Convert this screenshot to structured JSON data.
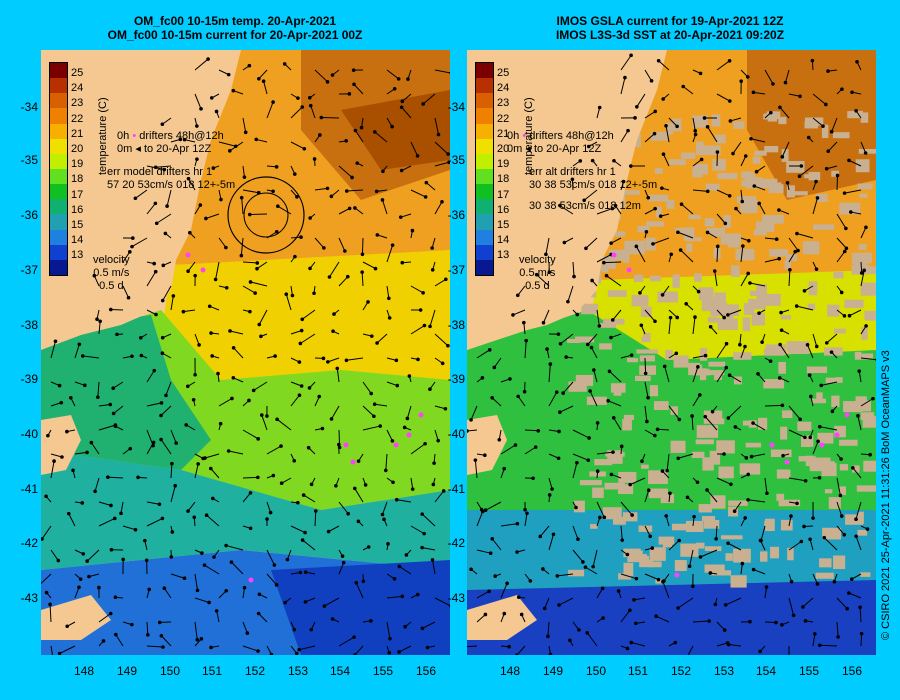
{
  "titles": {
    "left_line1": "OM_fc00 10-15m temp. 20-Apr-2021",
    "left_line2": "OM_fc00 10-15m current for 20-Apr-2021 00Z",
    "right_line1": "IMOS GSLA current for 19-Apr-2021 12Z",
    "right_line2": "IMOS L3S-3d SST at 20-Apr-2021 09:20Z"
  },
  "axes": {
    "lat_ticks": [
      "-34",
      "-35",
      "-36",
      "-37",
      "-38",
      "-39",
      "-40",
      "-41",
      "-42",
      "-43"
    ],
    "lon_ticks": [
      "148",
      "149",
      "150",
      "151",
      "152",
      "153",
      "154",
      "155",
      "156"
    ]
  },
  "colorbar": {
    "ticks": [
      "25",
      "24",
      "23",
      "22",
      "21",
      "20",
      "19",
      "18",
      "17",
      "16",
      "15",
      "14",
      "13"
    ],
    "label": "temperature (C)",
    "colors": [
      "#7a0000",
      "#b83000",
      "#d86000",
      "#f08000",
      "#f8b000",
      "#f0e000",
      "#c0f000",
      "#60e020",
      "#10c020",
      "#10b070",
      "#20a0b0",
      "#2080e0",
      "#1040d0",
      "#081890"
    ]
  },
  "left_legend": {
    "line1": "drifters 48h@12h",
    "line2": "to 20-Apr 12Z",
    "prefix1": "0h",
    "prefix2": "0m",
    "err1": "err model drifters hr 1",
    "err2": "57 20 53cm/s 018 12+-5m",
    "vel1": "velocity",
    "vel2": "0.5 m/s",
    "vel3": "0.5 d"
  },
  "right_legend": {
    "line1": "drifters 48h@12h",
    "line2": "to 20-Apr 12Z",
    "prefix1": "0h",
    "prefix2": "0m",
    "err1": "err alt drifters hr 1",
    "err2": "30 38 53cm/s 018 12+-5m",
    "err3": "30 38 53cm/s 018 12m",
    "vel1": "velocity",
    "vel2": "0.5 m/s",
    "vel3": "0.5 d"
  },
  "credit": "© CSIRO 2021   25-Apr-2021 11:31:26 BoM OceanMAPS v3"
}
